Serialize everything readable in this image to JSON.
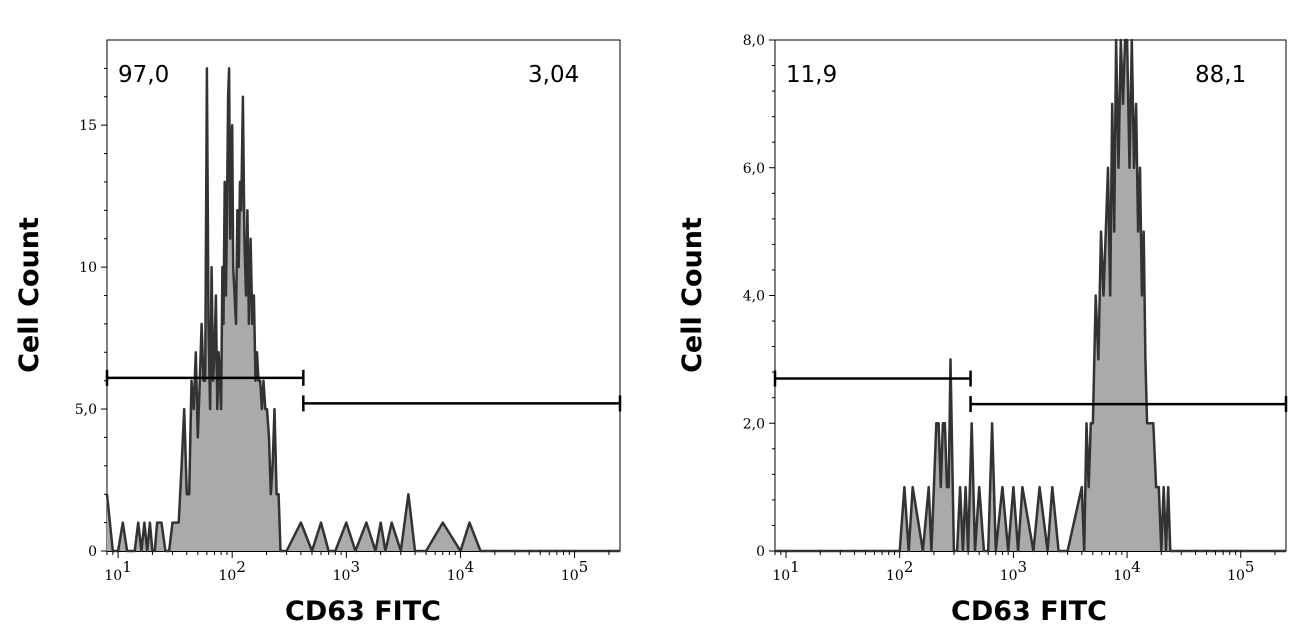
{
  "chart_data": [
    {
      "type": "histogram",
      "xlabel": "CD63 FITC",
      "ylabel": "Cell Count",
      "x_scale": "log",
      "xlim": [
        8,
        250000
      ],
      "ylim": [
        0,
        18
      ],
      "y_ticks": [
        0,
        5,
        10,
        15
      ],
      "y_tick_labels": [
        "0",
        "5,0",
        "10",
        "15"
      ],
      "x_ticks": [
        10,
        100,
        1000,
        10000,
        100000
      ],
      "x_tick_labels": [
        {
          "base": "10",
          "exp": "1"
        },
        {
          "base": "10",
          "exp": "2"
        },
        {
          "base": "10",
          "exp": "3"
        },
        {
          "base": "10",
          "exp": "4"
        },
        {
          "base": "10",
          "exp": "5"
        }
      ],
      "fill_color": "#aaaaaa",
      "line_color": "#333333",
      "series": [
        {
          "x": [
            8,
            9,
            10,
            11,
            12,
            13,
            14,
            15,
            16,
            17,
            18,
            19,
            20,
            21,
            22,
            24,
            26,
            28,
            30,
            32,
            34,
            36,
            38,
            40,
            42,
            44,
            46,
            48,
            50,
            52,
            54,
            56,
            58,
            60,
            62,
            64,
            66,
            68,
            70,
            72,
            74,
            76,
            78,
            80,
            82,
            84,
            86,
            88,
            90,
            92,
            94,
            96,
            98,
            100,
            102,
            105,
            108,
            111,
            114,
            117,
            120,
            124,
            128,
            132,
            136,
            140,
            145,
            150,
            155,
            160,
            165,
            170,
            176,
            182,
            188,
            195,
            202,
            210,
            218,
            226,
            235,
            245,
            255,
            265,
            275,
            300,
            400,
            500,
            600,
            700,
            800,
            1000,
            1200,
            1500,
            1800,
            2000,
            2200,
            2500,
            3000,
            3500,
            4000,
            5000,
            7000,
            10000,
            12000,
            15000,
            16000,
            18000,
            20000,
            40000,
            100000,
            250000
          ],
          "y": [
            2,
            0,
            0,
            1,
            0,
            0,
            0,
            1,
            0,
            1,
            0,
            1,
            0,
            0,
            1,
            1,
            0,
            0,
            1,
            1,
            1,
            3,
            5,
            2,
            2,
            6,
            5,
            7,
            4,
            6,
            8,
            6,
            6,
            17,
            8,
            5,
            10,
            6,
            7,
            9,
            5,
            7,
            6,
            5,
            10,
            8,
            13,
            9,
            12,
            16,
            17,
            11,
            14,
            15,
            10,
            9,
            8,
            12,
            10,
            13,
            12,
            16,
            11,
            9,
            12,
            8,
            11,
            8,
            9,
            6,
            7,
            6,
            6,
            5,
            6,
            5,
            5,
            4,
            2,
            3,
            5,
            2,
            2,
            0,
            0,
            0,
            1,
            0,
            1,
            0,
            0,
            1,
            0,
            1,
            0,
            1,
            0,
            1,
            0,
            2,
            0,
            0,
            1,
            0,
            1,
            0,
            0,
            0,
            0,
            0,
            0,
            0
          ]
        }
      ],
      "gates": [
        {
          "label": "97,0",
          "x_range": [
            8,
            420
          ],
          "y_level": 6.1
        },
        {
          "label": "3,04",
          "x_range": [
            420,
            250000
          ],
          "y_level": 5.2
        }
      ]
    },
    {
      "type": "histogram",
      "xlabel": "CD63 FITC",
      "ylabel": "Cell Count",
      "x_scale": "log",
      "xlim": [
        8,
        250000
      ],
      "ylim": [
        0,
        8
      ],
      "y_ticks": [
        0,
        2,
        4,
        6,
        8
      ],
      "y_tick_labels": [
        "0",
        "2,0",
        "4,0",
        "6,0",
        "8,0"
      ],
      "x_ticks": [
        10,
        100,
        1000,
        10000,
        100000
      ],
      "x_tick_labels": [
        {
          "base": "10",
          "exp": "1"
        },
        {
          "base": "10",
          "exp": "2"
        },
        {
          "base": "10",
          "exp": "3"
        },
        {
          "base": "10",
          "exp": "4"
        },
        {
          "base": "10",
          "exp": "5"
        }
      ],
      "fill_color": "#aaaaaa",
      "line_color": "#333333",
      "series": [
        {
          "x": [
            8,
            100,
            110,
            120,
            130,
            160,
            180,
            190,
            200,
            210,
            220,
            230,
            240,
            250,
            260,
            270,
            280,
            300,
            320,
            340,
            360,
            380,
            400,
            430,
            460,
            500,
            550,
            600,
            650,
            700,
            800,
            900,
            1000,
            1100,
            1200,
            1500,
            1700,
            2000,
            2200,
            2500,
            3000,
            4000,
            4200,
            4400,
            4600,
            4800,
            5000,
            5300,
            5600,
            5900,
            6200,
            6500,
            6800,
            7100,
            7400,
            7700,
            8000,
            8400,
            8800,
            9200,
            9600,
            10000,
            10500,
            11000,
            11500,
            12000,
            12500,
            13000,
            13500,
            14000,
            14500,
            15000,
            16000,
            17000,
            18000,
            19000,
            20000,
            21000,
            22000,
            23000,
            24000,
            25000,
            26000,
            27000,
            28000,
            30000,
            100000,
            250000
          ],
          "y": [
            0,
            0,
            1,
            0,
            1,
            0,
            1,
            0,
            1,
            2,
            2,
            1,
            2,
            2,
            1,
            1,
            3,
            0,
            0,
            1,
            0,
            1,
            0,
            2,
            0,
            1,
            0,
            0,
            2,
            0,
            1,
            0,
            1,
            0,
            1,
            0,
            1,
            0,
            1,
            0,
            0,
            1,
            0,
            2,
            1,
            2,
            2,
            4,
            3,
            5,
            4,
            5,
            6,
            4,
            7,
            5,
            8,
            6,
            8,
            7,
            8,
            8,
            6,
            8,
            6,
            7,
            5,
            6,
            4,
            5,
            3,
            2,
            2,
            2,
            1,
            1,
            0,
            1,
            0,
            1,
            0,
            0,
            0,
            0,
            0,
            0,
            0,
            0
          ]
        }
      ],
      "gates": [
        {
          "label": "11,9",
          "x_range": [
            8,
            420
          ],
          "y_level": 2.7
        },
        {
          "label": "88,1",
          "x_range": [
            420,
            250000
          ],
          "y_level": 2.3
        }
      ]
    }
  ]
}
